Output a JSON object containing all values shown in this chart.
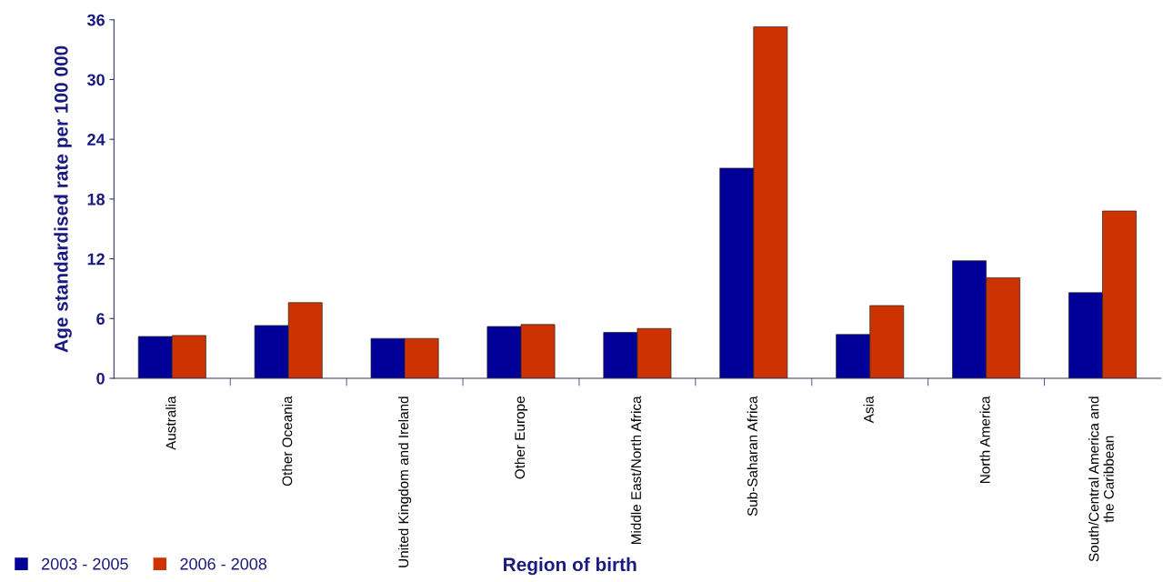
{
  "chart_data": {
    "type": "bar",
    "xlabel": "Region of birth",
    "ylabel": "Age standardised rate per 100 000",
    "categories": [
      "Australia",
      "Other Oceania",
      "United Kingdom and Ireland",
      "Other Europe",
      "Middle East/North Africa",
      "Sub-Saharan Africa",
      "Asia",
      "North America",
      "South/Central America and\nthe Caribbean"
    ],
    "series": [
      {
        "name": "2003 - 2005",
        "color": "#000099",
        "values": [
          4.2,
          5.3,
          4.0,
          5.2,
          4.6,
          21.1,
          4.4,
          11.8,
          8.6
        ]
      },
      {
        "name": "2006 - 2008",
        "color": "#cc3300",
        "values": [
          4.3,
          7.6,
          4.0,
          5.4,
          5.0,
          35.3,
          7.3,
          10.1,
          16.8
        ]
      }
    ],
    "ylim": [
      0,
      36
    ],
    "yticks": [
      0,
      6,
      12,
      18,
      24,
      30,
      36
    ],
    "grid": false,
    "legend": "bottom left"
  }
}
